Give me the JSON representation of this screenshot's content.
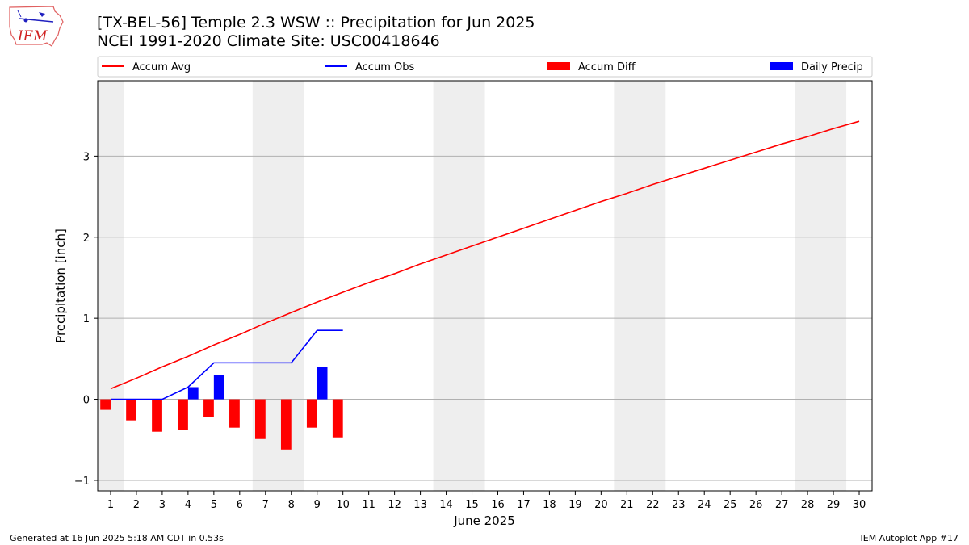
{
  "logo": {
    "text": "IEM"
  },
  "header": {
    "title_line1": "[TX-BEL-56] Temple 2.3 WSW :: Precipitation for Jun 2025",
    "title_line2": "NCEI 1991-2020 Climate Site: USC00418646"
  },
  "footer": {
    "left": "Generated at 16 Jun 2025 5:18 AM CDT in 0.53s",
    "right": "IEM Autoplot App #17"
  },
  "chart_data": {
    "type": "bar",
    "xlabel": "June 2025",
    "ylabel": "Precipitation [inch]",
    "xlim": [
      0.5,
      30.5
    ],
    "ylim": [
      -1.13,
      3.93
    ],
    "yticks": [
      -1,
      0,
      1,
      2,
      3
    ],
    "x_ticks": [
      1,
      2,
      3,
      4,
      5,
      6,
      7,
      8,
      9,
      10,
      11,
      12,
      13,
      14,
      15,
      16,
      17,
      18,
      19,
      20,
      21,
      22,
      23,
      24,
      25,
      26,
      27,
      28,
      29,
      30
    ],
    "grid": "horizontal",
    "legend": "top",
    "weekend_shading": [
      [
        0.5,
        1.5
      ],
      [
        6.5,
        8.5
      ],
      [
        13.5,
        15.5
      ],
      [
        20.5,
        22.5
      ],
      [
        27.5,
        29.5
      ]
    ],
    "legend_entries": [
      {
        "label": "Accum Avg",
        "kind": "line",
        "color": "#ff0000"
      },
      {
        "label": "Accum Obs",
        "kind": "line",
        "color": "#0000ff"
      },
      {
        "label": "Accum Diff",
        "kind": "bar",
        "color": "#ff0000"
      },
      {
        "label": "Daily Precip",
        "kind": "bar",
        "color": "#0000ff"
      }
    ],
    "series": [
      {
        "name": "Accum Avg",
        "type": "line",
        "color": "#ff0000",
        "x": [
          1,
          2,
          3,
          4,
          5,
          6,
          7,
          8,
          9,
          10,
          11,
          12,
          13,
          14,
          15,
          16,
          17,
          18,
          19,
          20,
          21,
          22,
          23,
          24,
          25,
          26,
          27,
          28,
          29,
          30
        ],
        "values": [
          0.13,
          0.26,
          0.4,
          0.53,
          0.67,
          0.8,
          0.94,
          1.07,
          1.2,
          1.32,
          1.44,
          1.55,
          1.67,
          1.78,
          1.89,
          2.0,
          2.11,
          2.22,
          2.33,
          2.44,
          2.54,
          2.65,
          2.75,
          2.85,
          2.95,
          3.05,
          3.15,
          3.24,
          3.34,
          3.43
        ]
      },
      {
        "name": "Accum Obs",
        "type": "line",
        "color": "#0000ff",
        "x": [
          1,
          2,
          3,
          4,
          5,
          6,
          7,
          8,
          9,
          10
        ],
        "values": [
          0.0,
          0.0,
          0.0,
          0.15,
          0.45,
          0.45,
          0.45,
          0.45,
          0.85,
          0.85
        ]
      },
      {
        "name": "Accum Diff",
        "type": "bar",
        "color": "#ff0000",
        "x": [
          1,
          2,
          3,
          4,
          5,
          6,
          7,
          8,
          9,
          10
        ],
        "values": [
          -0.13,
          -0.26,
          -0.4,
          -0.38,
          -0.22,
          -0.35,
          -0.49,
          -0.62,
          -0.35,
          -0.47
        ]
      },
      {
        "name": "Daily Precip",
        "type": "bar",
        "color": "#0000ff",
        "x": [
          1,
          2,
          3,
          4,
          5,
          6,
          7,
          8,
          9,
          10
        ],
        "values": [
          0.0,
          0.0,
          0.0,
          0.15,
          0.3,
          0.0,
          0.0,
          0.0,
          0.4,
          0.0
        ]
      }
    ]
  }
}
